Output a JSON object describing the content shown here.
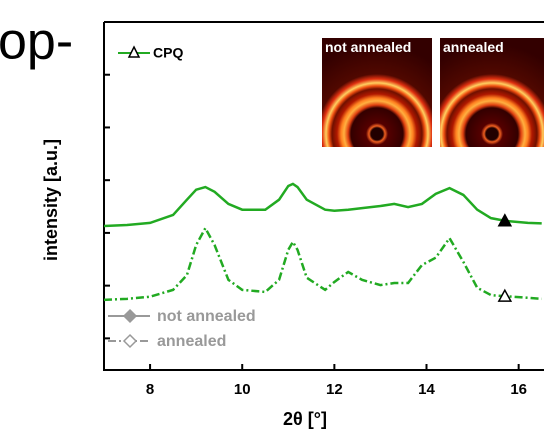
{
  "chart_data": {
    "type": "line",
    "fragment_text": "op-",
    "xlabel": "2θ [°]",
    "ylabel": "intensity [a.u.]",
    "compound_legend": "CPQ",
    "inset_labels": [
      "not annealed",
      "annealed"
    ],
    "x": [
      7,
      7.5,
      8,
      8.5,
      8.8,
      9,
      9.2,
      9.4,
      9.7,
      10,
      10.5,
      10.8,
      11,
      11.1,
      11.2,
      11.4,
      11.8,
      12,
      12.3,
      12.6,
      13,
      13.3,
      13.6,
      13.9,
      14.2,
      14.5,
      14.8,
      15.1,
      15.4,
      15.7,
      16.2,
      16.5
    ],
    "series": [
      {
        "name": "not annealed",
        "color": "#22aa22",
        "dash": "solid",
        "marker_index": 29,
        "values": [
          2.13,
          2.15,
          2.19,
          2.34,
          2.63,
          2.82,
          2.87,
          2.78,
          2.55,
          2.44,
          2.44,
          2.63,
          2.89,
          2.93,
          2.87,
          2.63,
          2.44,
          2.42,
          2.44,
          2.47,
          2.51,
          2.55,
          2.49,
          2.55,
          2.74,
          2.85,
          2.72,
          2.44,
          2.28,
          2.23,
          2.19,
          2.18
        ]
      },
      {
        "name": "annealed",
        "color": "#22aa22",
        "dash": "dashdot",
        "marker_index": 29,
        "values": [
          0.73,
          0.75,
          0.79,
          0.92,
          1.2,
          1.77,
          2.09,
          1.77,
          1.11,
          0.92,
          0.88,
          1.11,
          1.68,
          1.83,
          1.68,
          1.15,
          0.92,
          1.07,
          1.26,
          1.11,
          1.01,
          1.05,
          1.05,
          1.39,
          1.53,
          1.9,
          1.45,
          0.96,
          0.82,
          0.8,
          0.77,
          0.75
        ]
      }
    ],
    "xlim": [
      7,
      16.55
    ],
    "xticks": [
      8,
      10,
      12,
      14,
      16
    ],
    "ylim": [
      -0.6,
      6
    ],
    "yticks": [
      0,
      1,
      2,
      3,
      4,
      5
    ]
  }
}
